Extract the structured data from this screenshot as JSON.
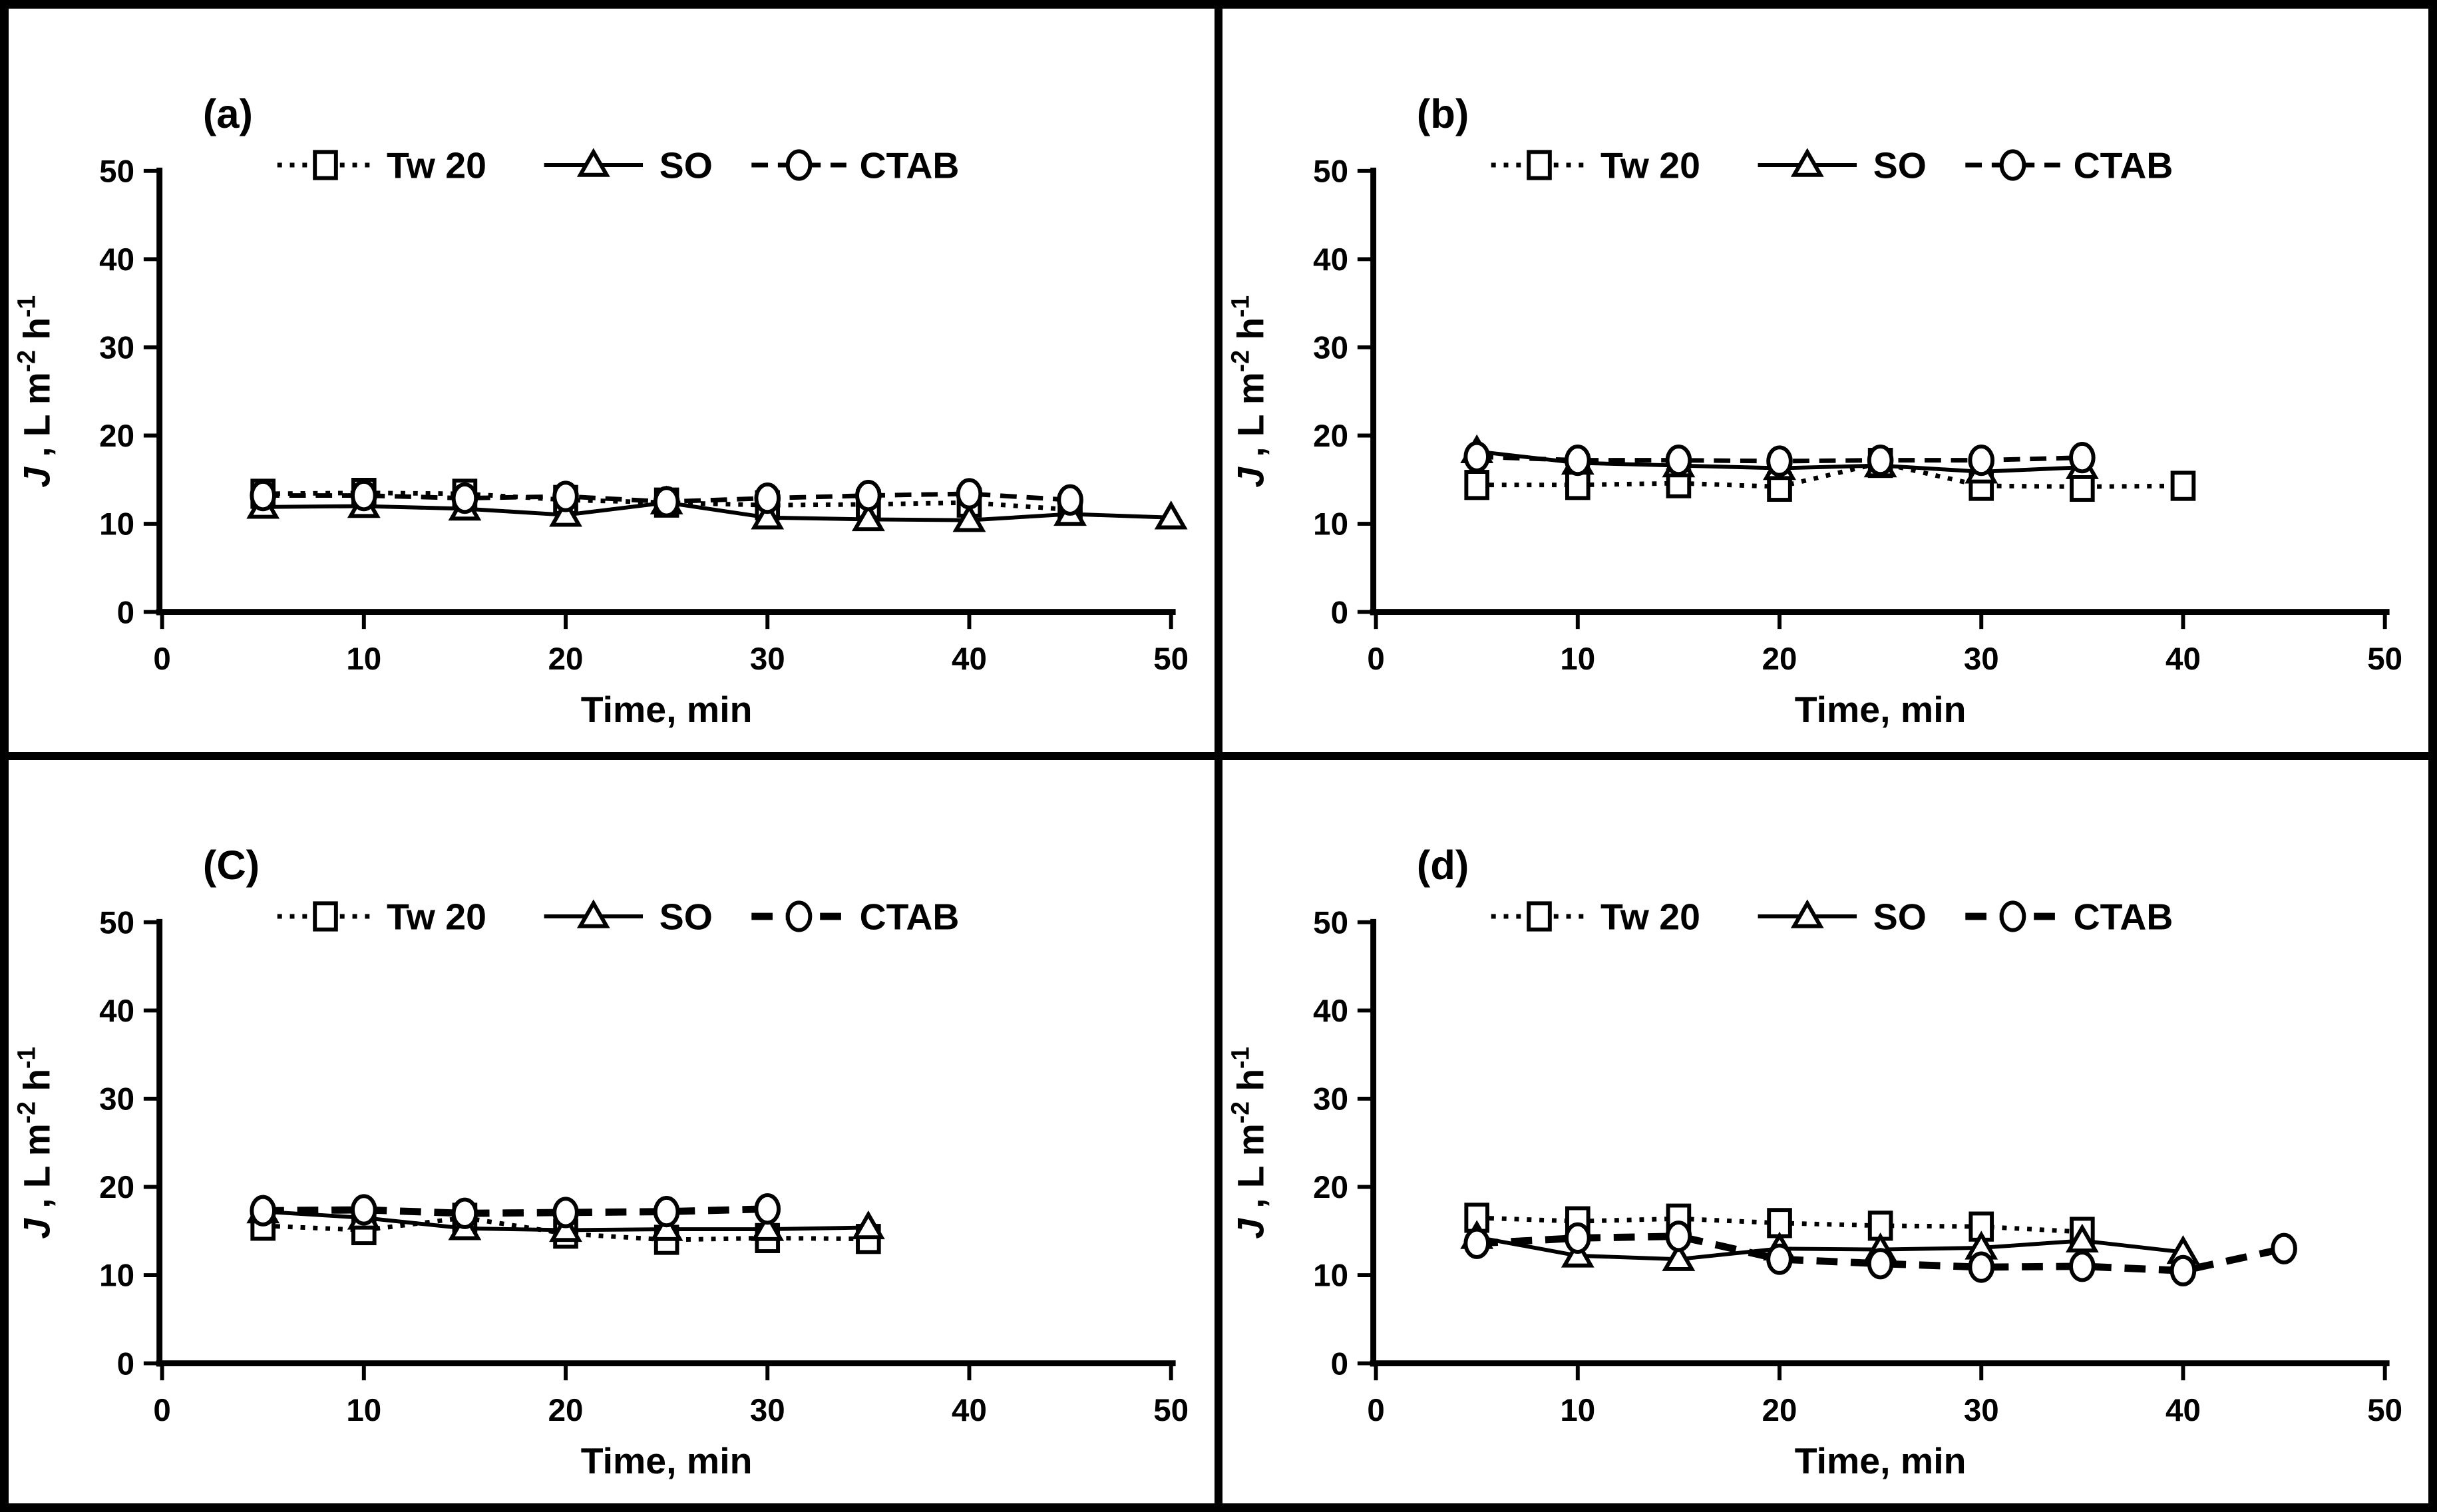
{
  "figure": {
    "ink_color": "#000000",
    "background_color": "#ffffff",
    "xlabel": "Time, min",
    "ylabel_parts": {
      "symbol": "J",
      "part1": " , L m",
      "sup1": "-2",
      "part2": " h",
      "sup2": "-1"
    },
    "ylabel_plain": "J, L m-2 h-1",
    "legend": [
      {
        "label": "Tw 20",
        "marker": "square",
        "line": "dotted"
      },
      {
        "label": "SO",
        "marker": "triangle",
        "line": "solid"
      },
      {
        "label": "CTAB",
        "marker": "circle",
        "line": "dashed"
      }
    ]
  },
  "chart_data": [
    {
      "type": "line",
      "panel_label": "(a)",
      "xlabel": "Time, min",
      "ylabel": "J, L m-2 h-1",
      "xlim": [
        0,
        50
      ],
      "ylim": [
        0,
        50
      ],
      "xticks": [
        0,
        10,
        20,
        30,
        40,
        50
      ],
      "yticks": [
        0,
        10,
        20,
        30,
        40,
        50
      ],
      "grid": false,
      "legend_position": "top",
      "bold_dashed": false,
      "series": [
        {
          "name": "Tw 20",
          "marker": "square",
          "line": "dotted",
          "x": [
            5,
            10,
            15,
            20,
            25,
            30,
            35,
            40,
            45
          ],
          "y": [
            13.4,
            13.5,
            13.4,
            12.7,
            12.4,
            12.1,
            12.2,
            12.4,
            11.6
          ]
        },
        {
          "name": "SO",
          "marker": "triangle",
          "line": "solid",
          "x": [
            5,
            10,
            15,
            20,
            25,
            30,
            35,
            40,
            45,
            50
          ],
          "y": [
            11.9,
            12.0,
            11.7,
            11.0,
            12.4,
            10.7,
            10.5,
            10.4,
            11.1,
            10.7
          ]
        },
        {
          "name": "CTAB",
          "marker": "circle",
          "line": "dashed",
          "x": [
            5,
            10,
            15,
            20,
            25,
            30,
            35,
            40,
            45
          ],
          "y": [
            13.2,
            13.2,
            12.9,
            13.1,
            12.5,
            12.9,
            13.2,
            13.4,
            12.7
          ]
        }
      ]
    },
    {
      "type": "line",
      "panel_label": "(b)",
      "xlabel": "Time, min",
      "ylabel": "J, L m-2 h-1",
      "xlim": [
        0,
        50
      ],
      "ylim": [
        0,
        50
      ],
      "xticks": [
        0,
        10,
        20,
        30,
        40,
        50
      ],
      "yticks": [
        0,
        10,
        20,
        30,
        40,
        50
      ],
      "grid": false,
      "legend_position": "top",
      "bold_dashed": false,
      "series": [
        {
          "name": "Tw 20",
          "marker": "square",
          "line": "dotted",
          "x": [
            5,
            10,
            15,
            20,
            25,
            30,
            35,
            40
          ],
          "y": [
            14.4,
            14.4,
            14.6,
            14.2,
            16.9,
            14.3,
            14.2,
            14.3
          ]
        },
        {
          "name": "SO",
          "marker": "triangle",
          "line": "solid",
          "x": [
            5,
            10,
            15,
            20,
            25,
            30,
            35
          ],
          "y": [
            18.2,
            16.9,
            16.6,
            16.3,
            16.6,
            15.9,
            16.4
          ]
        },
        {
          "name": "CTAB",
          "marker": "circle",
          "line": "dashed",
          "x": [
            5,
            10,
            15,
            20,
            25,
            30,
            35
          ],
          "y": [
            17.6,
            17.2,
            17.2,
            17.1,
            17.2,
            17.2,
            17.5
          ]
        }
      ]
    },
    {
      "type": "line",
      "panel_label": "(C)",
      "xlabel": "Time, min",
      "ylabel": "J, L m-2 h-1",
      "xlim": [
        0,
        50
      ],
      "ylim": [
        0,
        50
      ],
      "xticks": [
        0,
        10,
        20,
        30,
        40,
        50
      ],
      "yticks": [
        0,
        10,
        20,
        30,
        40,
        50
      ],
      "grid": false,
      "legend_position": "top",
      "bold_dashed": true,
      "series": [
        {
          "name": "Tw 20",
          "marker": "square",
          "line": "dotted",
          "x": [
            5,
            10,
            15,
            20,
            25,
            30,
            35
          ],
          "y": [
            15.6,
            15.1,
            16.5,
            14.7,
            14.0,
            14.2,
            14.1
          ]
        },
        {
          "name": "SO",
          "marker": "triangle",
          "line": "solid",
          "x": [
            5,
            10,
            15,
            20,
            25,
            30,
            35
          ],
          "y": [
            17.2,
            16.5,
            15.3,
            15.1,
            15.2,
            15.2,
            15.4
          ]
        },
        {
          "name": "CTAB",
          "marker": "circle",
          "line": "dashed",
          "x": [
            5,
            10,
            15,
            20,
            25,
            30
          ],
          "y": [
            17.3,
            17.4,
            17.0,
            17.1,
            17.2,
            17.5
          ]
        }
      ]
    },
    {
      "type": "line",
      "panel_label": "(d)",
      "xlabel": "Time, min",
      "ylabel": "J, L m-2 h-1",
      "xlim": [
        0,
        50
      ],
      "ylim": [
        0,
        50
      ],
      "xticks": [
        0,
        10,
        20,
        30,
        40,
        50
      ],
      "yticks": [
        0,
        10,
        20,
        30,
        40,
        50
      ],
      "grid": false,
      "legend_position": "top",
      "bold_dashed": true,
      "series": [
        {
          "name": "Tw 20",
          "marker": "square",
          "line": "dotted",
          "x": [
            5,
            10,
            15,
            20,
            25,
            30,
            35
          ],
          "y": [
            16.5,
            16.1,
            16.4,
            15.9,
            15.6,
            15.5,
            14.9
          ]
        },
        {
          "name": "SO",
          "marker": "triangle",
          "line": "solid",
          "x": [
            5,
            10,
            15,
            20,
            25,
            30,
            35,
            40
          ],
          "y": [
            14.3,
            12.2,
            11.8,
            13.0,
            12.9,
            13.1,
            13.9,
            12.6
          ]
        },
        {
          "name": "CTAB",
          "marker": "circle",
          "line": "dashed",
          "x": [
            5,
            10,
            15,
            20,
            25,
            30,
            35,
            40,
            45
          ],
          "y": [
            13.6,
            14.2,
            14.4,
            11.8,
            11.3,
            10.9,
            11.0,
            10.5,
            13.0
          ]
        }
      ]
    }
  ]
}
